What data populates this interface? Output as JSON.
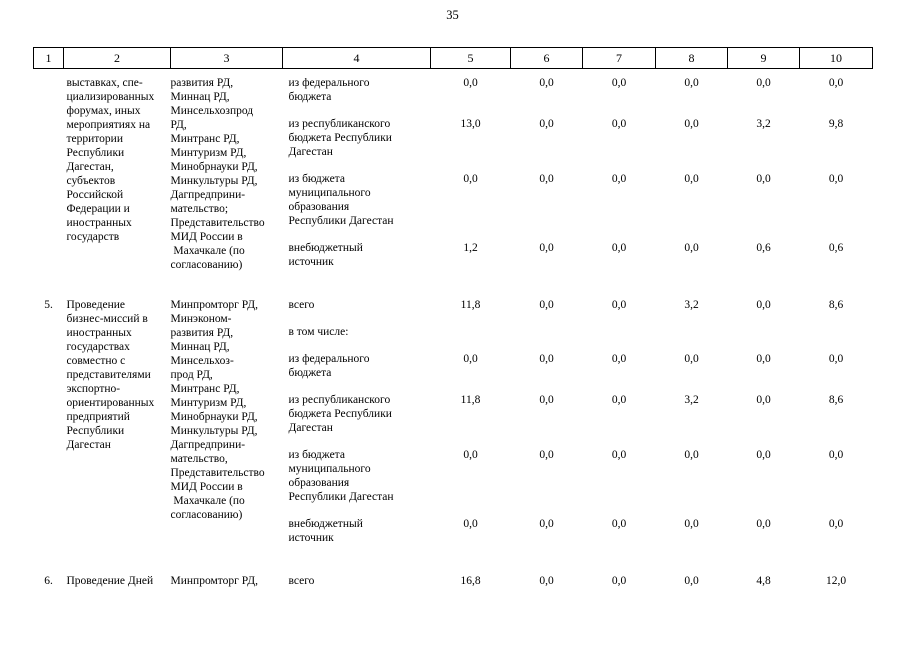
{
  "page": {
    "number": "35"
  },
  "table": {
    "columns": [
      "1",
      "2",
      "3",
      "4",
      "5",
      "6",
      "7",
      "8",
      "9",
      "10"
    ],
    "blocks": [
      {
        "num": "",
        "description": "выставках, спе-\nциализированных\nфорумах, иных\nмероприятиях на\nтерритории\nРеспублики\nДагестан,\nсубъектов\nРоссийской\nФедерации и\nиностранных\nгосударств",
        "agencies": "развития РД,\nМиннац РД,\nМинсельхозпрод\nРД,\nМинтранс РД,\nМинтуризм РД,\nМинобрнауки РД,\nМинкультуры РД,\nДагпредприни-\nмательство;\nПредставительство\nМИД России в\n Махачкале (по\nсогласованию)",
        "rows": [
          {
            "label": "из федерального\nбюджета",
            "values": [
              "0,0",
              "0,0",
              "0,0",
              "0,0",
              "0,0",
              "0,0"
            ]
          },
          {
            "label": "из республиканского\nбюджета Республики\nДагестан",
            "values": [
              "13,0",
              "0,0",
              "0,0",
              "0,0",
              "3,2",
              "9,8"
            ]
          },
          {
            "label": "из бюджета\nмуниципального\nобразования\nРеспублики Дагестан",
            "values": [
              "0,0",
              "0,0",
              "0,0",
              "0,0",
              "0,0",
              "0,0"
            ]
          },
          {
            "label": "внебюджетный\nисточник",
            "values": [
              "1,2",
              "0,0",
              "0,0",
              "0,0",
              "0,6",
              "0,6"
            ]
          }
        ]
      },
      {
        "num": "5.",
        "description": "Проведение\nбизнес-миссий в\nиностранных\nгосударствах\nсовместно с\nпредставителями\nэкспортно-\nориентированных\nпредприятий\nРеспублики\nДагестан",
        "agencies": "Минпромторг РД,\nМинэконом-\nразвития РД,\nМиннац РД,\nМинсельхоз-\nпрод РД,\nМинтранс РД,\nМинтуризм РД,\nМинобрнауки РД,\nМинкультуры РД,\nДагпредприни-\nмательство,\nПредставительство\nМИД России в\n Махачкале (по\nсогласованию)",
        "rows": [
          {
            "label": "всего",
            "values": [
              "11,8",
              "0,0",
              "0,0",
              "3,2",
              "0,0",
              "8,6"
            ]
          },
          {
            "label": "в том числе:",
            "values": [
              "",
              "",
              "",
              "",
              "",
              ""
            ]
          },
          {
            "label": "из федерального\nбюджета",
            "values": [
              "0,0",
              "0,0",
              "0,0",
              "0,0",
              "0,0",
              "0,0"
            ]
          },
          {
            "label": "из республиканского\nбюджета Республики\nДагестан",
            "values": [
              "11,8",
              "0,0",
              "0,0",
              "3,2",
              "0,0",
              "8,6"
            ]
          },
          {
            "label": "из бюджета\nмуниципального\nобразования\nРеспублики Дагестан",
            "values": [
              "0,0",
              "0,0",
              "0,0",
              "0,0",
              "0,0",
              "0,0"
            ]
          },
          {
            "label": "внебюджетный\nисточник",
            "values": [
              "0,0",
              "0,0",
              "0,0",
              "0,0",
              "0,0",
              "0,0"
            ]
          }
        ]
      },
      {
        "num": "6.",
        "description": "Проведение Дней",
        "agencies": "Минпромторг РД,",
        "rows": [
          {
            "label": "всего",
            "values": [
              "16,8",
              "0,0",
              "0,0",
              "0,0",
              "4,8",
              "12,0"
            ]
          }
        ]
      }
    ]
  }
}
